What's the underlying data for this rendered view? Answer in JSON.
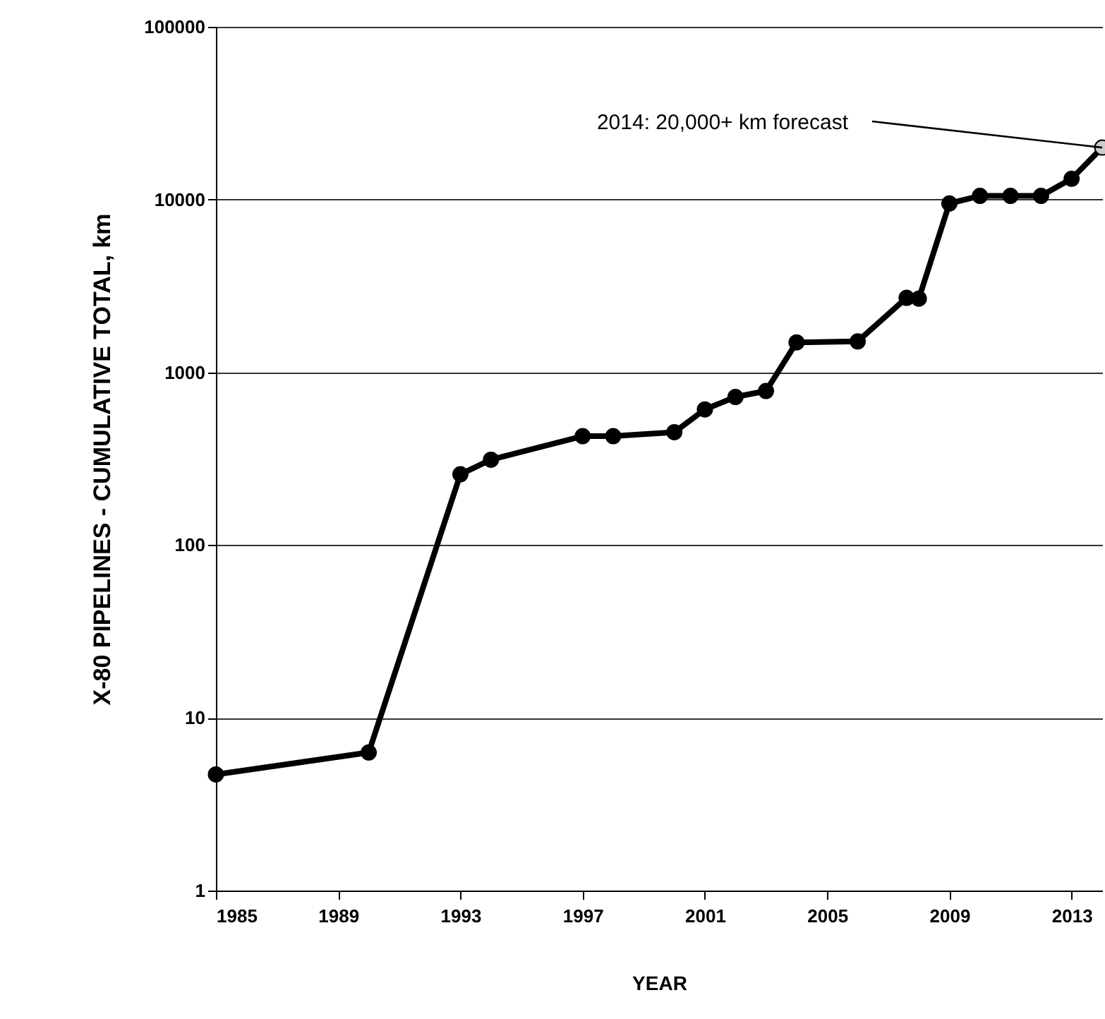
{
  "chart_data": {
    "type": "line",
    "xlabel": "YEAR",
    "ylabel": "X-80 PIPELINES - CUMULATIVE TOTAL, km",
    "x": [
      1985,
      1990,
      1993,
      1994,
      1997,
      1998,
      2000,
      2001,
      2002,
      2003,
      2004,
      2006,
      2007.6,
      2008,
      2009,
      2010,
      2011,
      2012,
      2013,
      2014
    ],
    "series": [
      {
        "color": "#000000",
        "values": [
          4.7,
          6.3,
          257,
          312,
          427,
          427,
          450,
          610,
          720,
          780,
          1490,
          1510,
          2700,
          2670,
          9500,
          10500,
          10500,
          10500,
          13200,
          20000
        ],
        "colors": [
          "#000000",
          "#000000",
          "#000000",
          "#000000",
          "#000000",
          "#000000",
          "#000000",
          "#000000",
          "#000000",
          "#000000",
          "#000000",
          "#000000",
          "#000000",
          "#000000",
          "#000000",
          "#000000",
          "#000000",
          "#000000",
          "#000000",
          "#cccccc"
        ]
      }
    ],
    "xlim": [
      1985,
      2014
    ],
    "xticks": [
      1985,
      1989,
      1993,
      1997,
      2001,
      2005,
      2009,
      2013
    ],
    "ylim": [
      1,
      100000
    ],
    "yticks": [
      1,
      10,
      100,
      1000,
      10000,
      100000
    ],
    "log": true,
    "grid": "y",
    "marker": "circle",
    "line_style": "solid",
    "annotations": [
      {
        "text": "2014: 20,000+ km forecast",
        "x": 2014,
        "y": 20000
      }
    ]
  }
}
